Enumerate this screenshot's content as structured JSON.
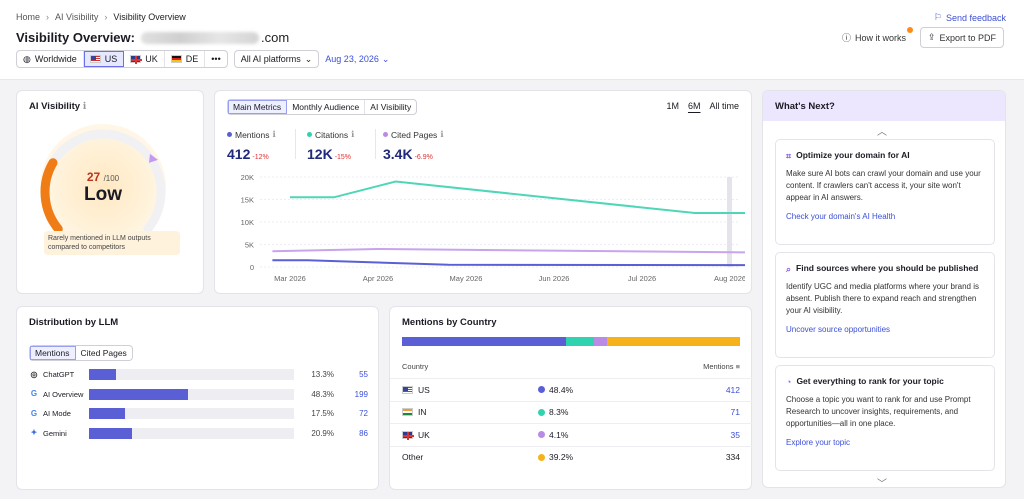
{
  "breadcrumb": [
    "Home",
    "AI Visibility",
    "Visibility Overview"
  ],
  "header": {
    "title_prefix": "Visibility Overview:",
    "domain_suffix": ".com",
    "feedback": "Send feedback",
    "how_it_works": "How it works",
    "export": "Export to PDF"
  },
  "filters": {
    "regions": [
      "Worldwide",
      "US",
      "UK",
      "DE",
      "•••"
    ],
    "active_region": "US",
    "platform": "All AI platforms",
    "date": "Aug 23, 2026"
  },
  "ai_visibility": {
    "title": "AI Visibility",
    "score": "27",
    "max": "/100",
    "label": "Low",
    "note": "Rarely mentioned in LLM outputs compared to competitors",
    "score_fraction": 0.27
  },
  "metrics": {
    "tabs": [
      "Main Metrics",
      "Monthly Audience",
      "AI Visibility"
    ],
    "ranges": [
      "1M",
      "6M",
      "All time"
    ],
    "items": [
      {
        "label": "Mentions",
        "value": "412",
        "change": "-12%",
        "color": "#5b5fd6"
      },
      {
        "label": "Citations",
        "value": "12K",
        "change": "-15%",
        "color": "#2fd3b0"
      },
      {
        "label": "Cited Pages",
        "value": "3.4K",
        "change": "-6.9%",
        "color": "#b98be6"
      }
    ]
  },
  "chart_data": {
    "type": "line",
    "x": [
      "Mar 2026",
      "Apr 2026",
      "May 2026",
      "Jun 2026",
      "Jul 2026",
      "Aug 2026"
    ],
    "yticks": [
      "20K",
      "15K",
      "10K",
      "5K",
      "0"
    ],
    "ylim": [
      0,
      20000
    ],
    "series": [
      {
        "name": "Citations",
        "color": "#4fd6b8",
        "points": [
          [
            0,
            15500
          ],
          [
            0.5,
            15500
          ],
          [
            1.2,
            19000
          ],
          [
            4.6,
            12000
          ],
          [
            5.4,
            12000
          ]
        ]
      },
      {
        "name": "Cited Pages",
        "color": "#c8a4ec",
        "points": [
          [
            -0.2,
            3500
          ],
          [
            1.0,
            4000
          ],
          [
            5.4,
            3200
          ]
        ]
      },
      {
        "name": "Mentions",
        "color": "#5b5fd6",
        "points": [
          [
            -0.2,
            1500
          ],
          [
            0.2,
            1500
          ],
          [
            1.8,
            500
          ],
          [
            5.4,
            400
          ]
        ]
      }
    ]
  },
  "distribution": {
    "title": "Distribution by LLM",
    "tabs": [
      "Mentions",
      "Cited Pages"
    ],
    "rows": [
      {
        "name": "ChatGPT",
        "icon": "◎",
        "pct": "13.3%",
        "fraction": 0.133,
        "count": "55"
      },
      {
        "name": "AI Overview",
        "icon": "G",
        "pct": "48.3%",
        "fraction": 0.483,
        "count": "199"
      },
      {
        "name": "AI Mode",
        "icon": "G",
        "pct": "17.5%",
        "fraction": 0.175,
        "count": "72"
      },
      {
        "name": "Gemini",
        "icon": "✦",
        "pct": "20.9%",
        "fraction": 0.209,
        "count": "86"
      }
    ]
  },
  "countries": {
    "title": "Mentions by Country",
    "col_country": "Country",
    "col_mentions": "Mentions",
    "rows": [
      {
        "name": "US",
        "flag": "us",
        "pct": "48.4%",
        "fraction": 0.484,
        "count": "412",
        "color": "#5b5fd6"
      },
      {
        "name": "IN",
        "flag": "in",
        "pct": "8.3%",
        "fraction": 0.083,
        "count": "71",
        "color": "#2fd3b0"
      },
      {
        "name": "UK",
        "flag": "uk",
        "pct": "4.1%",
        "fraction": 0.041,
        "count": "35",
        "color": "#b98be6"
      },
      {
        "name": "Other",
        "flag": "",
        "pct": "39.2%",
        "fraction": 0.392,
        "count": "334",
        "color": "#f5b21b"
      }
    ]
  },
  "next": {
    "title": "What's Next?",
    "tips": [
      {
        "title": "Optimize your domain for AI",
        "body": "Make sure AI bots can crawl your domain and use your content. If crawlers can't access it, your site won't appear in AI answers.",
        "link": "Check your domain's AI Health"
      },
      {
        "title": "Find sources where you should be published",
        "body": "Identify UGC and media platforms where your brand is absent. Publish there to expand reach and strengthen your AI visibility.",
        "link": "Uncover source opportunities"
      },
      {
        "title": "Get everything to rank for your topic",
        "body": "Choose a topic you want to rank for and use Prompt Research to uncover insights, requirements, and opportunities—all in one place.",
        "link": "Explore your topic"
      }
    ]
  }
}
